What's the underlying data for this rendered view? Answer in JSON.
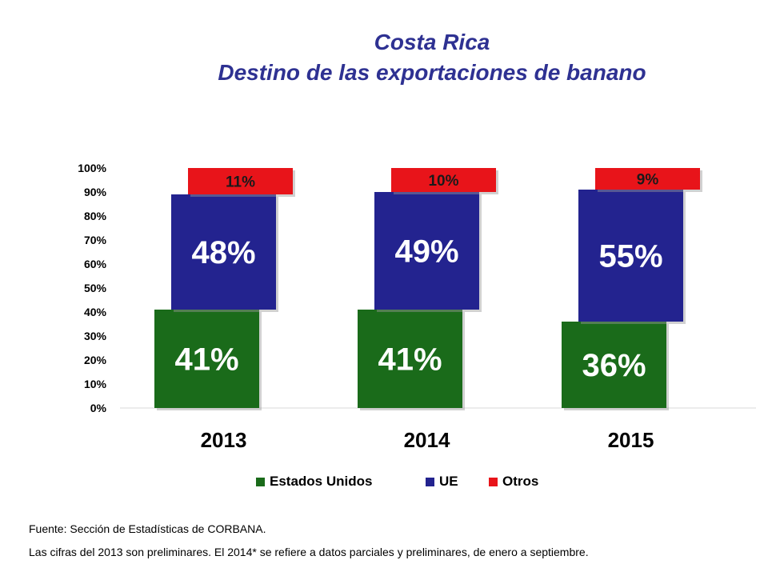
{
  "header": {
    "title_line1": "Costa Rica",
    "title_line2": "Destino de las exportaciones de banano"
  },
  "chart_data": {
    "type": "bar",
    "stacked": true,
    "categories": [
      "2013",
      "2014",
      "2015"
    ],
    "series": [
      {
        "name": "Estados Unidos",
        "color": "#1a6b1a",
        "values": [
          41,
          41,
          36
        ]
      },
      {
        "name": "UE",
        "color": "#23238f",
        "values": [
          48,
          49,
          55
        ]
      },
      {
        "name": "Otros",
        "color": "#e8141a",
        "values": [
          11,
          10,
          9
        ]
      }
    ],
    "data_labels": [
      [
        "41%",
        "41%",
        "36%"
      ],
      [
        "48%",
        "49%",
        "55%"
      ],
      [
        "11%",
        "10%",
        "9%"
      ]
    ],
    "yticks": [
      "0%",
      "10%",
      "20%",
      "30%",
      "40%",
      "50%",
      "60%",
      "70%",
      "80%",
      "90%",
      "100%"
    ],
    "ylim": [
      0,
      100
    ],
    "legend_position": "bottom",
    "grid": false
  },
  "footer": {
    "source": "Fuente: Sección de Estadísticas de CORBANA.",
    "note": "Las cifras del 2013 son preliminares. El 2014* se refiere a datos parciales y preliminares, de enero a septiembre."
  }
}
